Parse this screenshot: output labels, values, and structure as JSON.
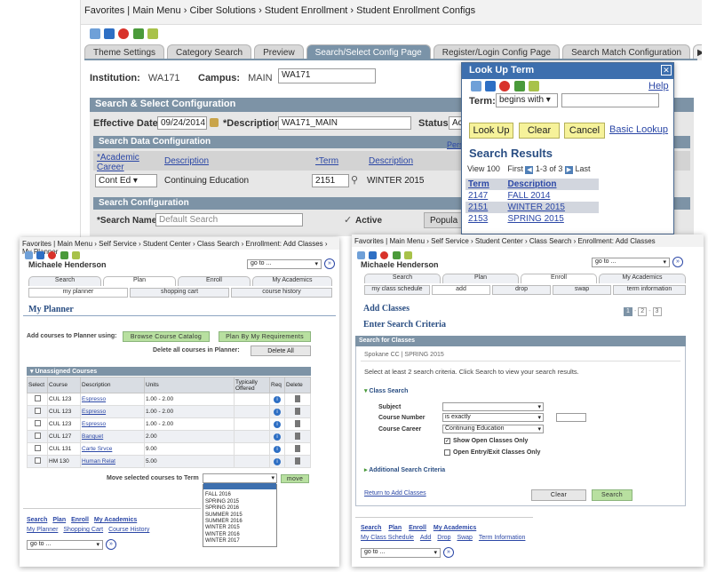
{
  "top": {
    "breadcrumb": [
      "Favorites",
      "Main Menu",
      "Ciber Solutions",
      "Student Enrollment",
      "Student Enrollment Configs"
    ],
    "tabs": [
      "Theme Settings",
      "Category Search",
      "Preview",
      "Search/Select Config Page",
      "Register/Login Config Page",
      "Search Match Configuration"
    ],
    "institution_label": "Institution:",
    "institution": "WA171",
    "campus_label": "Campus:",
    "campus": "MAIN",
    "campus_input": "WA171",
    "section_title": "Search & Select Configuration",
    "eff_date_label": "Effective Date:",
    "eff_date": "09/24/2014",
    "desc_label": "*Description:",
    "desc": "WA171_MAIN",
    "status_label": "Status:",
    "status": "Ac",
    "sdc_title": "Search Data Configuration",
    "pers": "Pers",
    "col_career": "*Academic Career",
    "col_desc1": "Description",
    "col_term": "*Term",
    "col_desc2": "Description",
    "career_value": "Cont Ed",
    "career_desc": "Continuing Education",
    "term_value": "2151",
    "term_desc": "WINTER 2015",
    "sc_title": "Search Configuration",
    "search_name_label": "*Search Name:",
    "search_name": "Default Search",
    "active_label": "Active",
    "popular": "Popula"
  },
  "lookup": {
    "title": "Look Up Term",
    "help": "Help",
    "term_label": "Term:",
    "operator": "begins with",
    "buttons": {
      "lookup": "Look Up",
      "clear": "Clear",
      "cancel": "Cancel"
    },
    "basic": "Basic Lookup",
    "results_title": "Search Results",
    "view": "View 100",
    "first": "First",
    "count": "1-3 of 3",
    "last": "Last",
    "headers": [
      "Term",
      "Description"
    ],
    "rows": [
      [
        "2147",
        "FALL 2014"
      ],
      [
        "2151",
        "WINTER 2015"
      ],
      [
        "2153",
        "SPRING 2015"
      ]
    ]
  },
  "planner": {
    "breadcrumb": [
      "Favorites",
      "Main Menu",
      "Self Service",
      "Student Center",
      "Class Search",
      "Enrollment: Add Classes",
      "My Planner"
    ],
    "user": "Michaele Henderson",
    "goto": "go to ...",
    "tabs": [
      "Search",
      "Plan",
      "Enroll",
      "My Academics"
    ],
    "subtabs": [
      "my planner",
      "shopping cart",
      "course history"
    ],
    "title": "My Planner",
    "add_label": "Add courses to Planner using:",
    "browse": "Browse Course Catalog",
    "plan_req": "Plan By My Requirements",
    "delete_label": "Delete all courses in Planner:",
    "delete_all": "Delete All",
    "table_title": "Unassigned Courses",
    "headers": [
      "Select",
      "Course",
      "Description",
      "Units",
      "Typically Offered",
      "Req",
      "Delete"
    ],
    "rows": [
      [
        "CUL 123",
        "Espresso",
        "1.00 - 2.00"
      ],
      [
        "CUL 123",
        "Espresso",
        "1.00 - 2.00"
      ],
      [
        "CUL 123",
        "Espresso",
        "1.00 - 2.00"
      ],
      [
        "CUL 127",
        "Banquet",
        "2.00"
      ],
      [
        "CUL 131",
        "Carte Srvce",
        "9.00"
      ],
      [
        "HM 130",
        "Human Relat",
        "5.00"
      ]
    ],
    "move_label": "Move selected courses to Term",
    "move": "move",
    "term_options": [
      "FALL 2015",
      "FALL 2016",
      "SPRING 2015",
      "SPRING 2016",
      "SUMMER 2015",
      "SUMMER 2016",
      "WINTER 2015",
      "WINTER 2016",
      "WINTER 2017"
    ],
    "footer_links": [
      "Search",
      "Plan",
      "Enroll",
      "My Academics"
    ],
    "footer_sub": [
      "My Planner",
      "Shopping Cart",
      "Course History"
    ],
    "footer_goto": "go to ..."
  },
  "add": {
    "breadcrumb": [
      "Favorites",
      "Main Menu",
      "Self Service",
      "Student Center",
      "Class Search",
      "Enrollment: Add Classes"
    ],
    "user": "Michaele Henderson",
    "goto": "go to ...",
    "tabs": [
      "Search",
      "Plan",
      "Enroll",
      "My Academics"
    ],
    "subtabs": [
      "my class schedule",
      "add",
      "drop",
      "swap",
      "term information"
    ],
    "title": "Add Classes",
    "steps": [
      "1",
      "2",
      "3"
    ],
    "subtitle": "Enter Search Criteria",
    "box_title": "Search for Classes",
    "school": "Spokane CC | SPRING 2015",
    "instruction": "Select at least 2 search criteria. Click Search to view your search results.",
    "class_search": "Class Search",
    "subject_label": "Subject",
    "number_label": "Course Number",
    "number_op": "is exactly",
    "career_label": "Course Career",
    "career": "Continuing Education",
    "open_only": "Show Open Classes Only",
    "open_entry": "Open Entry/Exit Classes Only",
    "additional": "Additional Search Criteria",
    "return": "Return to Add Classes",
    "clear": "Clear",
    "search": "Search",
    "footer_links": [
      "Search",
      "Plan",
      "Enroll",
      "My Academics"
    ],
    "footer_sub": [
      "My Class Schedule",
      "Add",
      "Drop",
      "Swap",
      "Term Information"
    ],
    "footer_goto": "go to ..."
  }
}
